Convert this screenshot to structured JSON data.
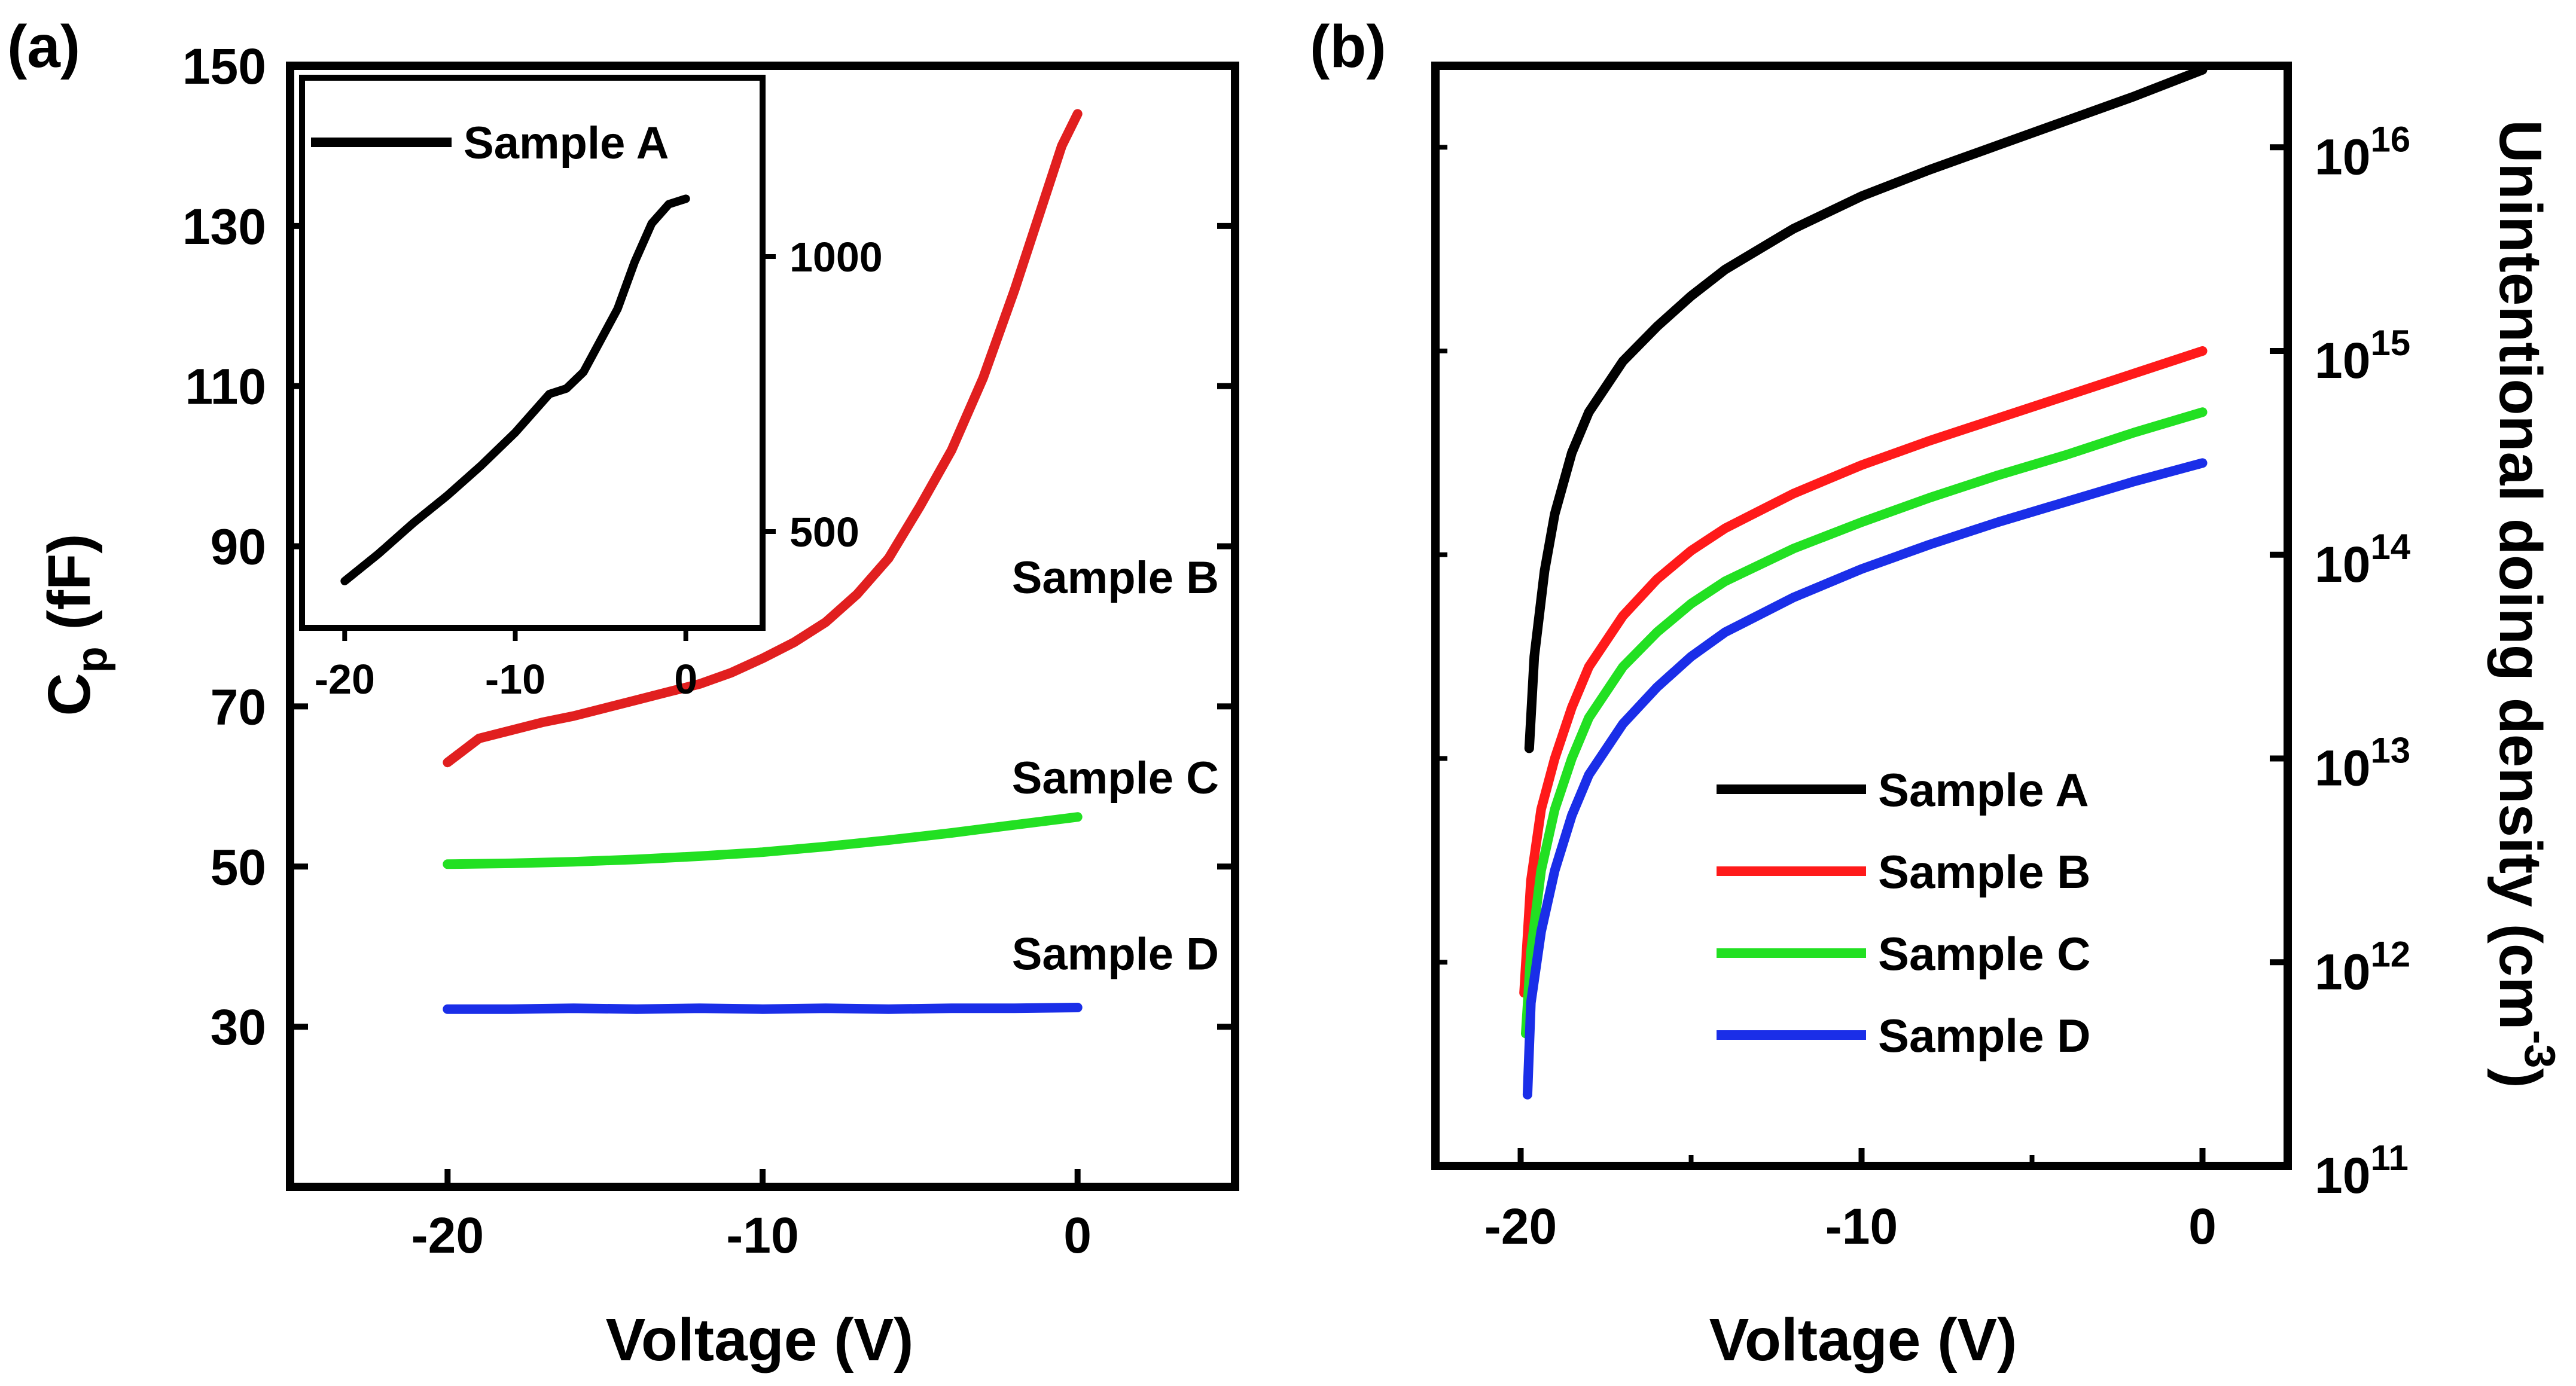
{
  "chart_data": [
    {
      "panel_label": "(a)",
      "type": "line",
      "xlabel": "Voltage (V)",
      "ylabel": {
        "main": "C",
        "sub": "p",
        "rest": " (fF)"
      },
      "xlim": [
        -25,
        5
      ],
      "ylim": [
        10,
        150
      ],
      "xticks": [
        {
          "v": -20,
          "label": "-20"
        },
        {
          "v": -10,
          "label": "-10"
        },
        {
          "v": 0,
          "label": "0"
        }
      ],
      "yticks": [
        {
          "v": 30,
          "label": "30"
        },
        {
          "v": 50,
          "label": "50"
        },
        {
          "v": 70,
          "label": "70"
        },
        {
          "v": 90,
          "label": "90"
        },
        {
          "v": 110,
          "label": "110"
        },
        {
          "v": 130,
          "label": "130"
        },
        {
          "v": 150,
          "label": "150"
        }
      ],
      "annotations": [
        {
          "text": "Sample B",
          "x": 1.2,
          "y": 86,
          "color": "#000000"
        },
        {
          "text": "Sample C",
          "x": 1.2,
          "y": 61,
          "color": "#000000"
        },
        {
          "text": "Sample D",
          "x": 1.2,
          "y": 39,
          "color": "#000000"
        }
      ],
      "series": [
        {
          "color": "#e11f1f",
          "x": [
            -20,
            -19,
            -18,
            -17,
            -16,
            -15,
            -14,
            -13,
            -12,
            -11,
            -10,
            -9,
            -8,
            -7,
            -6,
            -5,
            -4,
            -3,
            -2,
            -1,
            -0.5,
            0
          ],
          "y": [
            63,
            66,
            67,
            68,
            68.8,
            69.8,
            70.8,
            71.8,
            72.8,
            74.2,
            76,
            78,
            80.5,
            84,
            88.5,
            95,
            102,
            111,
            122,
            134,
            140,
            144
          ]
        },
        {
          "color": "#22e022",
          "x": [
            -20,
            -18,
            -16,
            -14,
            -12,
            -10,
            -8,
            -6,
            -4,
            -2,
            0
          ],
          "y": [
            50.3,
            50.4,
            50.6,
            50.9,
            51.3,
            51.8,
            52.5,
            53.3,
            54.2,
            55.2,
            56.2
          ]
        },
        {
          "color": "#1a2ee8",
          "x": [
            -20,
            -18,
            -16,
            -14,
            -12,
            -10,
            -8,
            -6,
            -4,
            -2,
            0
          ],
          "y": [
            32.2,
            32.2,
            32.3,
            32.2,
            32.3,
            32.2,
            32.3,
            32.2,
            32.3,
            32.3,
            32.4
          ]
        }
      ],
      "inset": {
        "type": "line",
        "xlim": [
          -22.5,
          4.5
        ],
        "ylim": [
          325,
          1325
        ],
        "xticks": [
          {
            "v": -20,
            "label": "-20"
          },
          {
            "v": -10,
            "label": "-10"
          },
          {
            "v": 0,
            "label": "0"
          }
        ],
        "yticks": [
          {
            "v": 500,
            "label": "500"
          },
          {
            "v": 1000,
            "label": "1000"
          }
        ],
        "legend": {
          "label": "Sample A",
          "color": "#000000",
          "placement": "top-left"
        },
        "series": [
          {
            "name": "Sample A",
            "color": "#000000",
            "x": [
              -20,
              -18,
              -16,
              -14,
              -12,
              -10,
              -8,
              -7,
              -6,
              -4,
              -3,
              -2,
              -1,
              0
            ],
            "y": [
              410,
              460,
              515,
              565,
              620,
              680,
              750,
              760,
              790,
              905,
              990,
              1060,
              1095,
              1105
            ]
          }
        ]
      }
    },
    {
      "panel_label": "(b)",
      "type": "line",
      "xlabel": "Voltage (V)",
      "y2label": {
        "main": "Unintentional doing density (cm",
        "sup": "-3",
        "close": ")"
      },
      "xlim": [
        -22.5,
        2.5
      ],
      "ylim_log10": [
        11,
        16.4
      ],
      "yscale": "log",
      "xticks": [
        {
          "v": -20,
          "label": "-20"
        },
        {
          "v": -10,
          "label": "-10"
        },
        {
          "v": 0,
          "label": "0"
        }
      ],
      "yticks": [
        {
          "exp": 11,
          "base": "10",
          "sup": "11"
        },
        {
          "exp": 12,
          "base": "10",
          "sup": "12"
        },
        {
          "exp": 13,
          "base": "10",
          "sup": "13"
        },
        {
          "exp": 14,
          "base": "10",
          "sup": "14"
        },
        {
          "exp": 15,
          "base": "10",
          "sup": "15"
        },
        {
          "exp": 16,
          "base": "10",
          "sup": "16"
        }
      ],
      "legend": {
        "placement": "bottom-right"
      },
      "series": [
        {
          "name": "Sample A",
          "color": "#000000",
          "x": [
            -19.75,
            -19.6,
            -19.3,
            -19,
            -18.5,
            -18,
            -17,
            -16,
            -15,
            -14,
            -12,
            -10,
            -8,
            -6,
            -4,
            -2,
            0
          ],
          "y_log10": [
            13.05,
            13.5,
            13.92,
            14.2,
            14.5,
            14.7,
            14.95,
            15.12,
            15.27,
            15.4,
            15.6,
            15.76,
            15.89,
            16.01,
            16.13,
            16.25,
            16.38
          ]
        },
        {
          "name": "Sample B",
          "color": "#ff1a1a",
          "x": [
            -19.9,
            -19.7,
            -19.4,
            -19,
            -18.5,
            -18,
            -17,
            -16,
            -15,
            -14,
            -12,
            -10,
            -8,
            -6,
            -4,
            -2,
            0
          ],
          "y_log10": [
            11.85,
            12.4,
            12.75,
            13.0,
            13.25,
            13.45,
            13.7,
            13.88,
            14.02,
            14.13,
            14.3,
            14.44,
            14.56,
            14.67,
            14.78,
            14.89,
            15.0
          ]
        },
        {
          "name": "Sample C",
          "color": "#22e022",
          "x": [
            -19.85,
            -19.7,
            -19.4,
            -19,
            -18.5,
            -18,
            -17,
            -16,
            -15,
            -14,
            -12,
            -10,
            -8,
            -6,
            -4,
            -2,
            0
          ],
          "y_log10": [
            11.65,
            12.05,
            12.45,
            12.75,
            13.0,
            13.2,
            13.45,
            13.62,
            13.76,
            13.87,
            14.03,
            14.16,
            14.28,
            14.39,
            14.49,
            14.6,
            14.7
          ]
        },
        {
          "name": "Sample D",
          "color": "#1a2ee8",
          "x": [
            -19.8,
            -19.7,
            -19.4,
            -19,
            -18.5,
            -18,
            -17,
            -16,
            -15,
            -14,
            -12,
            -10,
            -8,
            -6,
            -4,
            -2,
            0
          ],
          "y_log10": [
            11.35,
            11.8,
            12.15,
            12.45,
            12.72,
            12.92,
            13.17,
            13.35,
            13.5,
            13.62,
            13.79,
            13.93,
            14.05,
            14.16,
            14.26,
            14.36,
            14.45
          ]
        }
      ]
    }
  ]
}
